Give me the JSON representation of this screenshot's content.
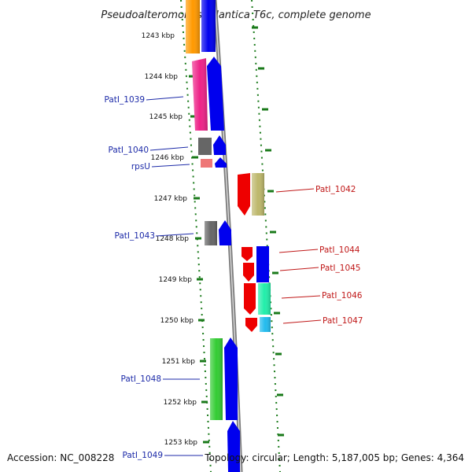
{
  "title": "Pseudoalteromonas atlantica T6c, complete genome",
  "footer": {
    "accession": "Accession: NC_008228",
    "topology": "Topology: circular; Length: 5,187,005 bp; Genes: 4,364"
  },
  "colors": {
    "forward_strand": "#0000ee",
    "reverse_strand": "#ee0000",
    "left_label": "#1c2aa8",
    "right_label": "#c01818",
    "ruler_dots": "#1a7a1a",
    "backbone": "#888888"
  },
  "ruler_ticks": [
    "1243 kbp",
    "1244 kbp",
    "1245 kbp",
    "1246 kbp",
    "1247 kbp",
    "1248 kbp",
    "1249 kbp",
    "1250 kbp",
    "1251 kbp",
    "1252 kbp",
    "1253 kbp"
  ],
  "genes_left": [
    {
      "label": "PatI_1039",
      "color": "#ee2288"
    },
    {
      "label": "PatI_1040",
      "color": "#666666"
    },
    {
      "label": "rpsU",
      "color": "#ee7777"
    },
    {
      "label": "PatI_1043",
      "color": "#666666"
    },
    {
      "label": "PatI_1048",
      "color": "#33cc33"
    },
    {
      "label": "PatI_1049",
      "color": "#0000ee"
    }
  ],
  "genes_right": [
    {
      "label": "PatI_1042",
      "color": "#bdb76b"
    },
    {
      "label": "PatI_1044",
      "color": "#0000ee"
    },
    {
      "label": "PatI_1045",
      "color": "#0000ee"
    },
    {
      "label": "PatI_1046",
      "color": "#22eeaa"
    },
    {
      "label": "PatI_1047",
      "color": "#22bbee"
    }
  ]
}
